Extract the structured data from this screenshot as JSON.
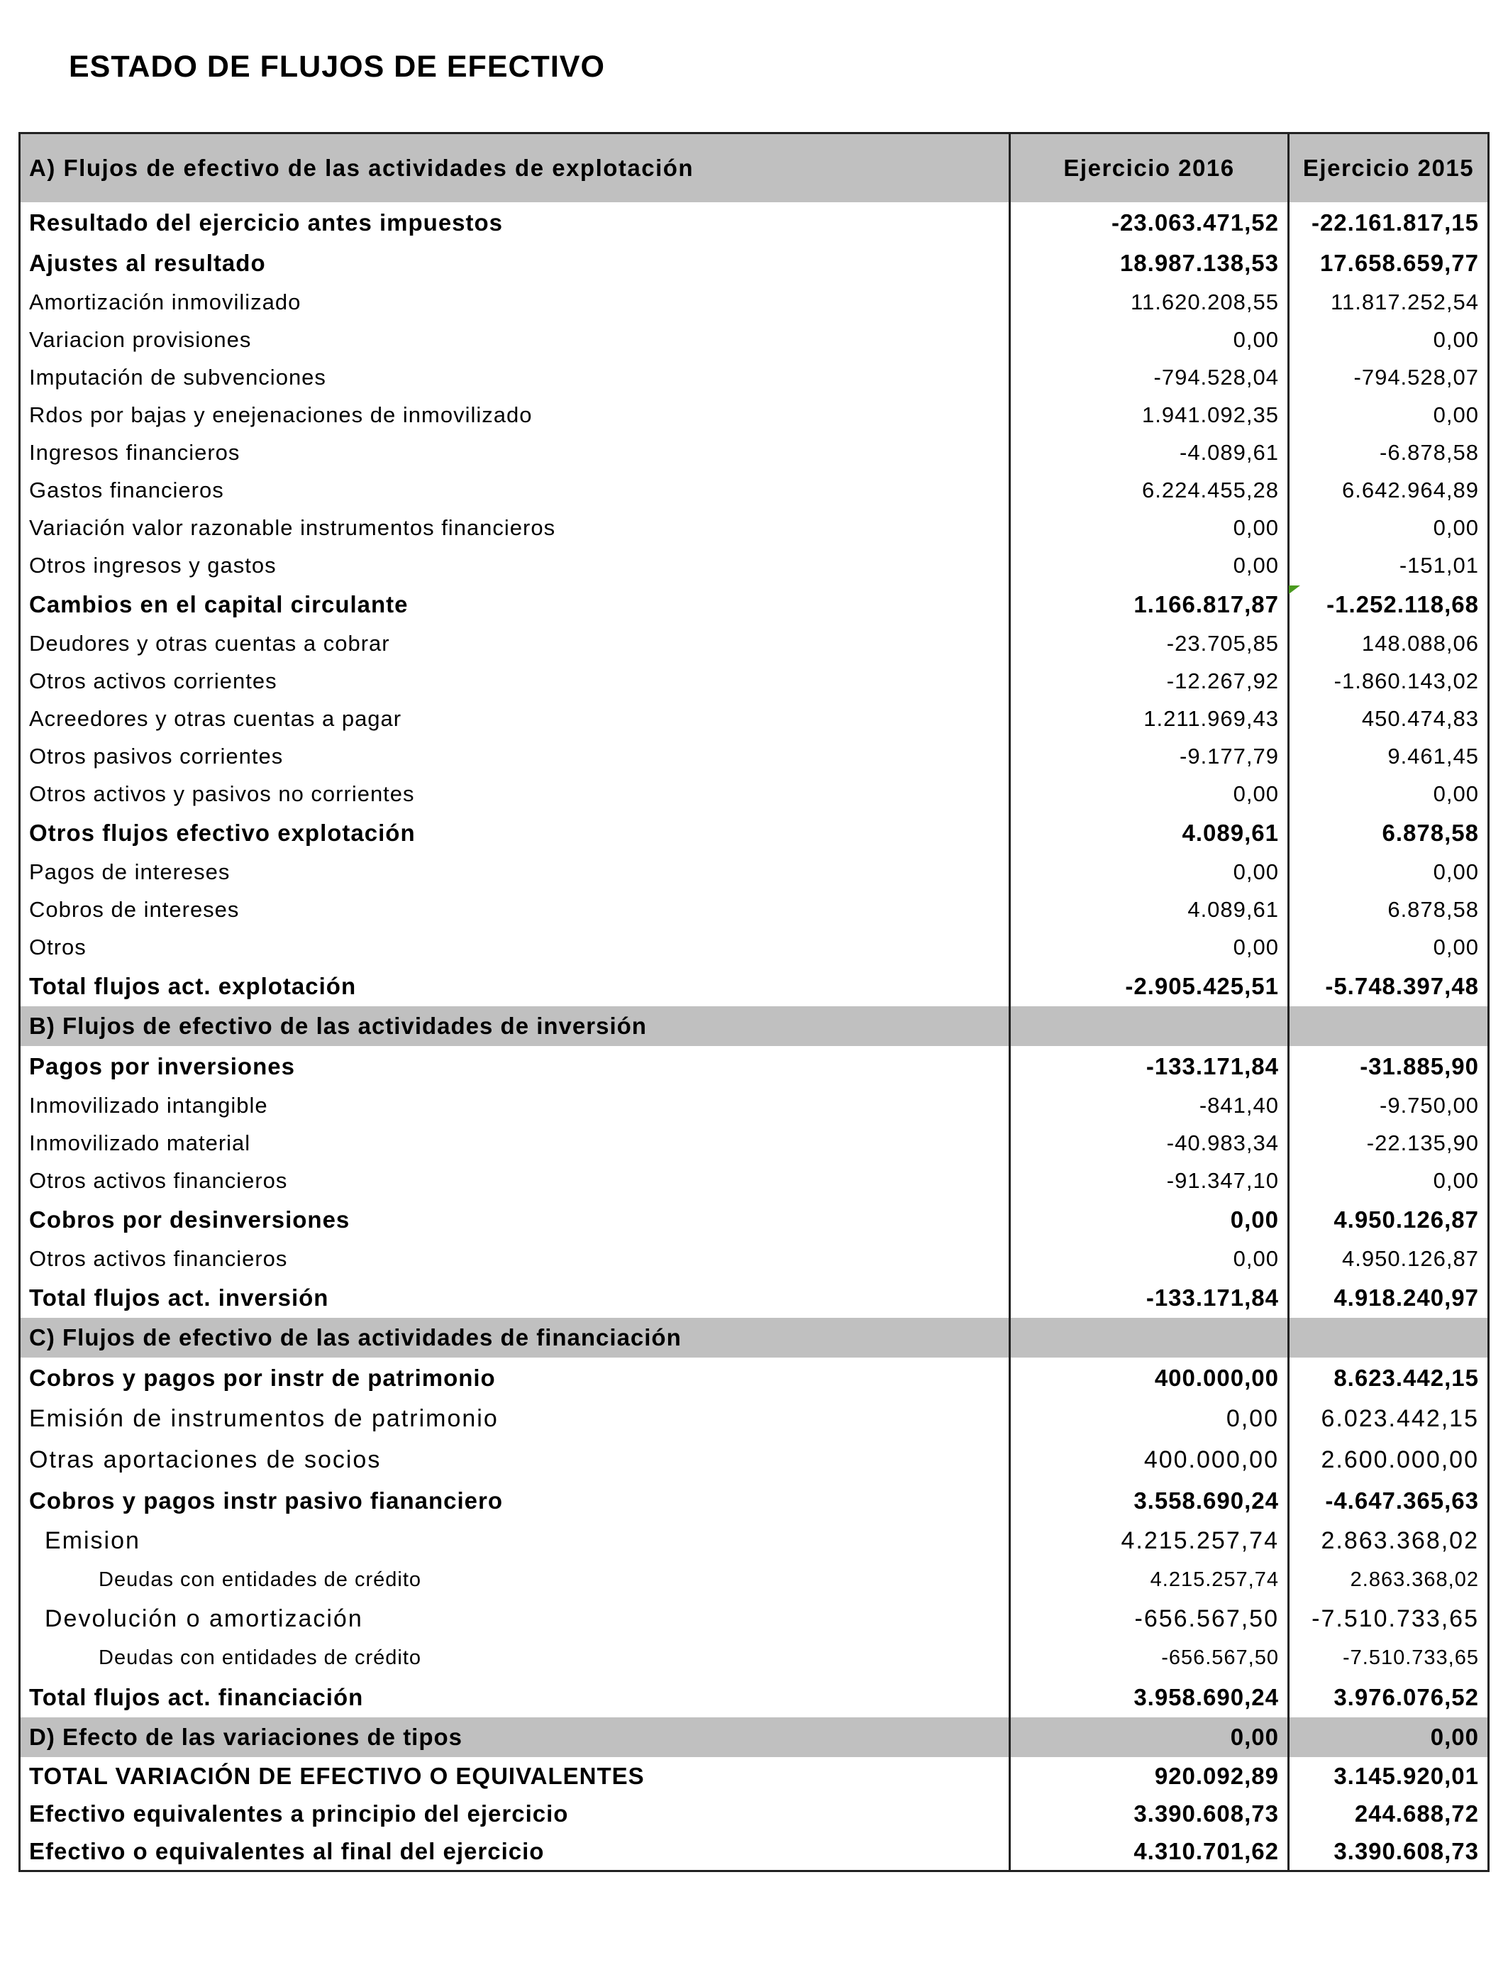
{
  "title": "ESTADO DE FLUJOS DE EFECTIVO",
  "colors": {
    "header_bg": "#c0c0c0",
    "comment_marker": "#4a9a1e"
  },
  "header": {
    "label": "A) Flujos de efectivo de las actividades de explotación",
    "col_2016": "Ejercicio  2016",
    "col_2015": "Ejercicio  2015"
  },
  "rows": [
    {
      "kind": "subtotal",
      "label": "Resultado del ejercicio antes impuestos",
      "v2016": "-23.063.471,52",
      "v2015": "-22.161.817,15"
    },
    {
      "kind": "subtotal",
      "label": "Ajustes al resultado",
      "v2016": "18.987.138,53",
      "v2015": "17.658.659,77"
    },
    {
      "kind": "item",
      "label": "Amortización inmovilizado",
      "v2016": "11.620.208,55",
      "v2015": "11.817.252,54"
    },
    {
      "kind": "item",
      "label": "Variacion provisiones",
      "v2016": "0,00",
      "v2015": "0,00"
    },
    {
      "kind": "item",
      "label": "Imputación de subvenciones",
      "v2016": "-794.528,04",
      "v2015": "-794.528,07"
    },
    {
      "kind": "item",
      "label": "Rdos por bajas y enejenaciones de inmovilizado",
      "v2016": "1.941.092,35",
      "v2015": "0,00"
    },
    {
      "kind": "item",
      "label": "Ingresos financieros",
      "v2016": "-4.089,61",
      "v2015": "-6.878,58"
    },
    {
      "kind": "item",
      "label": "Gastos financieros",
      "v2016": "6.224.455,28",
      "v2015": "6.642.964,89"
    },
    {
      "kind": "item",
      "label": "Variación valor razonable instrumentos financieros",
      "v2016": "0,00",
      "v2015": "0,00"
    },
    {
      "kind": "item",
      "label": "Otros ingresos y gastos",
      "v2016": "0,00",
      "v2015": "-151,01"
    },
    {
      "kind": "subtotal",
      "label": "Cambios en el capital circulante",
      "v2016": "1.166.817,87",
      "v2015": "-1.252.118,68",
      "comment": true
    },
    {
      "kind": "item",
      "label": "Deudores y otras cuentas a cobrar",
      "v2016": "-23.705,85",
      "v2015": "148.088,06"
    },
    {
      "kind": "item",
      "label": "Otros activos corrientes",
      "v2016": "-12.267,92",
      "v2015": "-1.860.143,02"
    },
    {
      "kind": "item",
      "label": "Acreedores y otras cuentas a pagar",
      "v2016": "1.211.969,43",
      "v2015": "450.474,83"
    },
    {
      "kind": "item",
      "label": "Otros pasivos corrientes",
      "v2016": "-9.177,79",
      "v2015": "9.461,45"
    },
    {
      "kind": "item",
      "label": "Otros activos y pasivos no corrientes",
      "v2016": "0,00",
      "v2015": "0,00"
    },
    {
      "kind": "subtotal",
      "label": "Otros flujos efectivo explotación",
      "v2016": "4.089,61",
      "v2015": "6.878,58"
    },
    {
      "kind": "item",
      "label": "Pagos de intereses",
      "v2016": "0,00",
      "v2015": "0,00"
    },
    {
      "kind": "item",
      "label": "Cobros de intereses",
      "v2016": "4.089,61",
      "v2015": "6.878,58"
    },
    {
      "kind": "item",
      "label": "Otros",
      "v2016": "0,00",
      "v2015": "0,00"
    },
    {
      "kind": "total",
      "label": "Total flujos act. explotación",
      "v2016": "-2.905.425,51",
      "v2015": "-5.748.397,48"
    },
    {
      "kind": "section",
      "label": "B) Flujos de efectivo de las actividades de inversión",
      "v2016": "",
      "v2015": ""
    },
    {
      "kind": "subtotal",
      "label": "Pagos por inversiones",
      "v2016": "-133.171,84",
      "v2015": "-31.885,90"
    },
    {
      "kind": "item",
      "label": "Inmovilizado intangible",
      "v2016": "-841,40",
      "v2015": "-9.750,00"
    },
    {
      "kind": "item",
      "label": "Inmovilizado material",
      "v2016": "-40.983,34",
      "v2015": "-22.135,90"
    },
    {
      "kind": "item",
      "label": "Otros activos financieros",
      "v2016": "-91.347,10",
      "v2015": "0,00"
    },
    {
      "kind": "subtotal",
      "label": "Cobros por desinversiones",
      "v2016": "0,00",
      "v2015": "4.950.126,87"
    },
    {
      "kind": "item",
      "label": "Otros activos financieros",
      "v2016": "0,00",
      "v2015": "4.950.126,87"
    },
    {
      "kind": "total",
      "label": "Total flujos act. inversión",
      "v2016": "-133.171,84",
      "v2015": "4.918.240,97"
    },
    {
      "kind": "section",
      "label": "C) Flujos de efectivo de las actividades de financiación",
      "v2016": "",
      "v2015": ""
    },
    {
      "kind": "subtotal",
      "label": "Cobros y pagos por instr de patrimonio",
      "v2016": "400.000,00",
      "v2015": "8.623.442,15"
    },
    {
      "kind": "fin",
      "label": "Emisión de instrumentos de patrimonio",
      "v2016": "0,00",
      "v2015": "6.023.442,15"
    },
    {
      "kind": "fin",
      "label": "Otras aportaciones de socios",
      "v2016": "400.000,00",
      "v2015": "2.600.000,00"
    },
    {
      "kind": "subtotal",
      "label": "Cobros y pagos instr pasivo fiananciero",
      "v2016": "3.558.690,24",
      "v2015": "-4.647.365,63"
    },
    {
      "kind": "fin-l1",
      "label": "Emision",
      "v2016": "4.215.257,74",
      "v2015": "2.863.368,02"
    },
    {
      "kind": "fin-l2",
      "label": "Deudas con entidades de crédito",
      "v2016": "4.215.257,74",
      "v2015": "2.863.368,02"
    },
    {
      "kind": "fin-l1",
      "label": "Devolución o amortización",
      "v2016": "-656.567,50",
      "v2015": "-7.510.733,65"
    },
    {
      "kind": "fin-l2",
      "label": "Deudas con entidades de crédito",
      "v2016": "-656.567,50",
      "v2015": "-7.510.733,65"
    },
    {
      "kind": "total",
      "label": "Total flujos act. financiación",
      "v2016": "3.958.690,24",
      "v2015": "3.976.076,52"
    },
    {
      "kind": "section",
      "label": "D) Efecto de las variaciones de tipos",
      "v2016": "0,00",
      "v2015": "0,00"
    },
    {
      "kind": "grand",
      "label": "TOTAL VARIACIÓN DE EFECTIVO O EQUIVALENTES",
      "v2016": "920.092,89",
      "v2015": "3.145.920,01"
    },
    {
      "kind": "grand",
      "label": "Efectivo equivalentes a principio del ejercicio",
      "v2016": "3.390.608,73",
      "v2015": "244.688,72"
    },
    {
      "kind": "grand",
      "label": "Efectivo o equivalentes al final del ejercicio",
      "v2016": "4.310.701,62",
      "v2015": "3.390.608,73"
    }
  ]
}
